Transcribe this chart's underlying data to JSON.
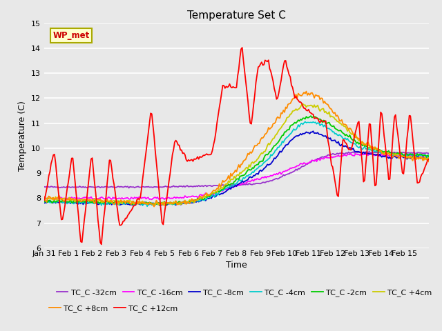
{
  "title": "Temperature Set C",
  "xlabel": "Time",
  "ylabel": "Temperature (C)",
  "ylim": [
    6.0,
    15.0
  ],
  "yticks": [
    6.0,
    7.0,
    8.0,
    9.0,
    10.0,
    11.0,
    12.0,
    13.0,
    14.0,
    15.0
  ],
  "background_color": "#e8e8e8",
  "plot_bg_color": "#e8e8e8",
  "grid_color": "#ffffff",
  "wp_met_label": "WP_met",
  "wp_met_box_color": "#ffffcc",
  "wp_met_text_color": "#cc0000",
  "wp_met_edge_color": "#aaaa00",
  "xtick_labels": [
    "Jan 31",
    "Feb 1",
    "Feb 2",
    "Feb 3",
    "Feb 4",
    "Feb 5",
    "Feb 6",
    "Feb 7",
    "Feb 8",
    "Feb 9",
    "Feb 10",
    "Feb 11",
    "Feb 12",
    "Feb 13",
    "Feb 14",
    "Feb 15"
  ],
  "series": [
    {
      "label": "TC_C -32cm",
      "color": "#9932cc",
      "lw": 1.3
    },
    {
      "label": "TC_C -16cm",
      "color": "#ff00ff",
      "lw": 1.3
    },
    {
      "label": "TC_C -8cm",
      "color": "#0000cd",
      "lw": 1.3
    },
    {
      "label": "TC_C -4cm",
      "color": "#00cccc",
      "lw": 1.3
    },
    {
      "label": "TC_C -2cm",
      "color": "#00cc00",
      "lw": 1.3
    },
    {
      "label": "TC_C +4cm",
      "color": "#cccc00",
      "lw": 1.3
    },
    {
      "label": "TC_C +8cm",
      "color": "#ff8c00",
      "lw": 1.3
    },
    {
      "label": "TC_C +12cm",
      "color": "#ff0000",
      "lw": 1.3
    }
  ]
}
